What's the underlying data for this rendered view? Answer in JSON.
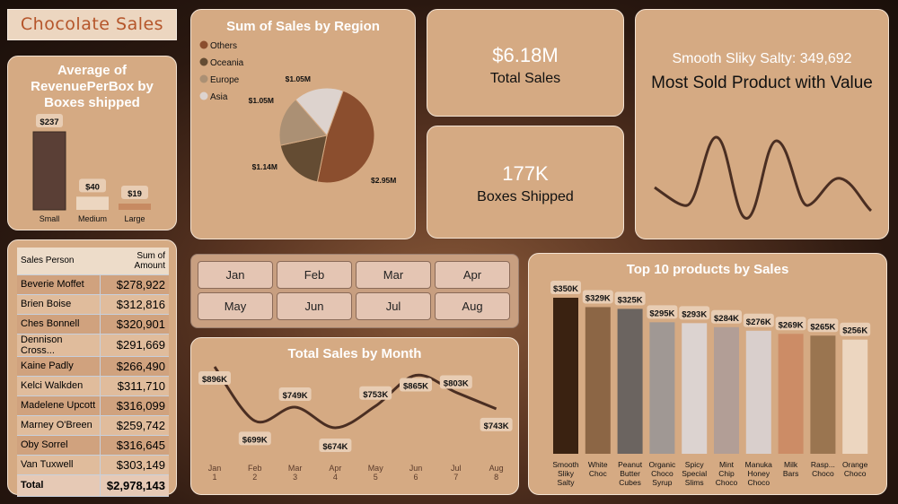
{
  "title": "Chocolate Sales",
  "avg_chart": {
    "title": "Average of RevenuePerBox by Boxes shipped",
    "type": "bar",
    "categories": [
      "Small",
      "Medium",
      "Large"
    ],
    "values": [
      237,
      40,
      19
    ],
    "labels": [
      "$237",
      "$40",
      "$19"
    ],
    "colors": [
      "#5a3f36",
      "#ecd6c0",
      "#c78a62"
    ]
  },
  "region_chart": {
    "title": "Sum of Sales by Region",
    "type": "pie",
    "legend": [
      "Others",
      "Oceania",
      "Europe",
      "Asia"
    ],
    "values": [
      2.95,
      1.14,
      1.05,
      1.05
    ],
    "labels": [
      "$2.95M",
      "$1.14M",
      "$1.05M",
      "$1.05M"
    ],
    "colors": [
      "#8b4e2e",
      "#644c33",
      "#ab9074",
      "#ddd3ce"
    ],
    "legend_position": "top-left"
  },
  "kpis": {
    "total_sales": {
      "value": "$6.18M",
      "label": "Total Sales"
    },
    "boxes_shipped": {
      "value": "177K",
      "label": "Boxes Shipped"
    },
    "most_sold": {
      "value": "Smooth Sliky Salty: 349,692",
      "label": "Most Sold Product with Value"
    }
  },
  "table": {
    "headers": [
      "Sales Person",
      "Sum of Amount"
    ],
    "rows": [
      [
        "Beverie Moffet",
        "$278,922"
      ],
      [
        "Brien Boise",
        "$312,816"
      ],
      [
        "Ches Bonnell",
        "$320,901"
      ],
      [
        "Dennison Cross...",
        "$291,669"
      ],
      [
        "Kaine Padly",
        "$266,490"
      ],
      [
        "Kelci Walkden",
        "$311,710"
      ],
      [
        "Madelene Upcott",
        "$316,099"
      ],
      [
        "Marney O'Breen",
        "$259,742"
      ],
      [
        "Oby Sorrel",
        "$316,645"
      ],
      [
        "Van Tuxwell",
        "$303,149"
      ]
    ],
    "total": [
      "Total",
      "$2,978,143"
    ]
  },
  "months": [
    "Jan",
    "Feb",
    "Mar",
    "Apr",
    "May",
    "Jun",
    "Jul",
    "Aug"
  ],
  "chart_data": [
    {
      "type": "line",
      "title": "Total Sales by Month",
      "x": [
        "Jan",
        "Feb",
        "Mar",
        "Apr",
        "May",
        "Jun",
        "Jul",
        "Aug"
      ],
      "x_sub": [
        "1",
        "2",
        "3",
        "4",
        "5",
        "6",
        "7",
        "8"
      ],
      "values": [
        896,
        699,
        749,
        674,
        753,
        865,
        803,
        743
      ],
      "labels": [
        "$896K",
        "$699K",
        "$749K",
        "$674K",
        "$753K",
        "$865K",
        "$803K",
        "$743K"
      ],
      "color": "#4a2e22"
    },
    {
      "type": "bar",
      "title": "Top 10 products by Sales",
      "categories": [
        "Smooth Sliky Salty",
        "White Choc",
        "Peanut Butter Cubes",
        "Organic Choco Syrup",
        "Spicy Special Slims",
        "Mint Chip Choco",
        "Manuka Honey Choco",
        "Milk Bars",
        "Rasp... Choco",
        "Orange Choco"
      ],
      "values": [
        350,
        329,
        325,
        295,
        293,
        284,
        276,
        269,
        265,
        256
      ],
      "labels": [
        "$350K",
        "$329K",
        "$325K",
        "$295K",
        "$293K",
        "$284K",
        "$276K",
        "$269K",
        "$265K",
        "$256K"
      ],
      "colors": [
        "#3a2211",
        "#8c6645",
        "#6b6460",
        "#a09894",
        "#dcd3d0",
        "#b29e96",
        "#d9cfcc",
        "#cc8c66",
        "#9a7550",
        "#ecd6c0"
      ]
    }
  ]
}
